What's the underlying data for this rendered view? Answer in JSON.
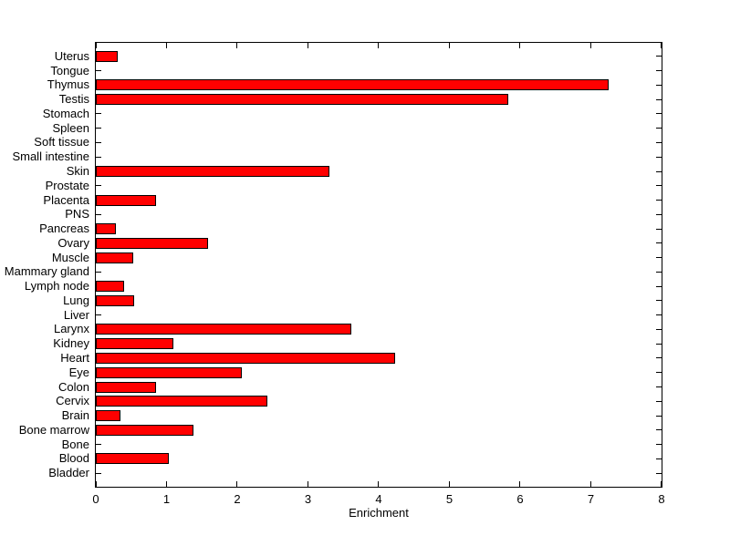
{
  "chart_data": {
    "type": "bar",
    "orientation": "horizontal",
    "title": "",
    "xlabel": "Enrichment",
    "ylabel": "",
    "xlim": [
      0,
      8
    ],
    "xticks": [
      "0",
      "1",
      "2",
      "3",
      "4",
      "5",
      "6",
      "7",
      "8"
    ],
    "grid": false,
    "legend": "none",
    "bar_color": "#ff0000",
    "bar_edge_color": "#000000",
    "axis_color": "#000000",
    "background_color": "#ffffff",
    "categories": [
      "Uterus",
      "Tongue",
      "Thymus",
      "Testis",
      "Stomach",
      "Spleen",
      "Soft tissue",
      "Small intestine",
      "Skin",
      "Prostate",
      "Placenta",
      "PNS",
      "Pancreas",
      "Ovary",
      "Muscle",
      "Mammary gland",
      "Lymph node",
      "Lung",
      "Liver",
      "Larynx",
      "Kidney",
      "Heart",
      "Eye",
      "Colon",
      "Cervix",
      "Brain",
      "Bone marrow",
      "Bone",
      "Blood",
      "Bladder"
    ],
    "values": [
      0.28,
      0,
      7.23,
      5.8,
      0,
      0,
      0,
      0,
      3.28,
      0,
      0.83,
      0,
      0.26,
      1.56,
      0.5,
      0,
      0.38,
      0.52,
      0,
      3.59,
      1.07,
      4.2,
      2.04,
      0.83,
      2.4,
      0.32,
      1.35,
      0,
      1.0,
      0
    ]
  }
}
